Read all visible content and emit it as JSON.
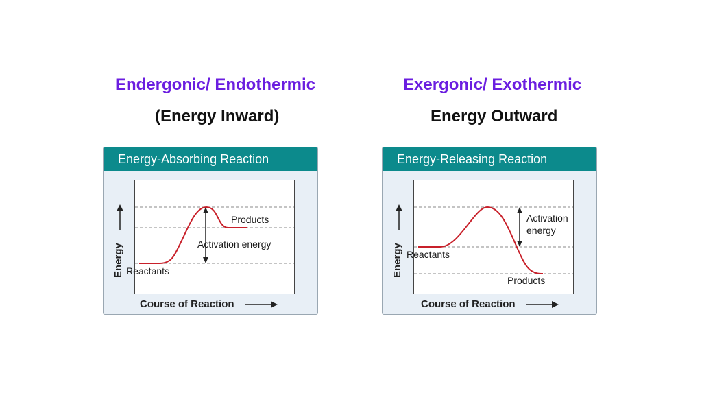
{
  "left": {
    "heading": "Endergonic/ Endothermic",
    "subheading": "(Energy Inward)",
    "panel_title": "Energy-Absorbing Reaction",
    "labels": {
      "products": "Products",
      "activation": "Activation energy",
      "reactants": "Reactants"
    },
    "x_axis": "Course of Reaction",
    "y_axis": "Energy"
  },
  "right": {
    "heading": "Exergonic/ Exothermic",
    "subheading": "Energy Outward",
    "panel_title": "Energy-Releasing Reaction",
    "labels": {
      "activation_line1": "Activation",
      "activation_line2": "energy",
      "reactants": "Reactants",
      "products": "Products"
    },
    "x_axis": "Course of Reaction",
    "y_axis": "Energy"
  },
  "colors": {
    "heading": "#6b1ee0",
    "panel_header": "#0c8a8c",
    "panel_bg": "#e8eff6",
    "curve": "#c8202a",
    "dashed": "#8a8a8a"
  }
}
